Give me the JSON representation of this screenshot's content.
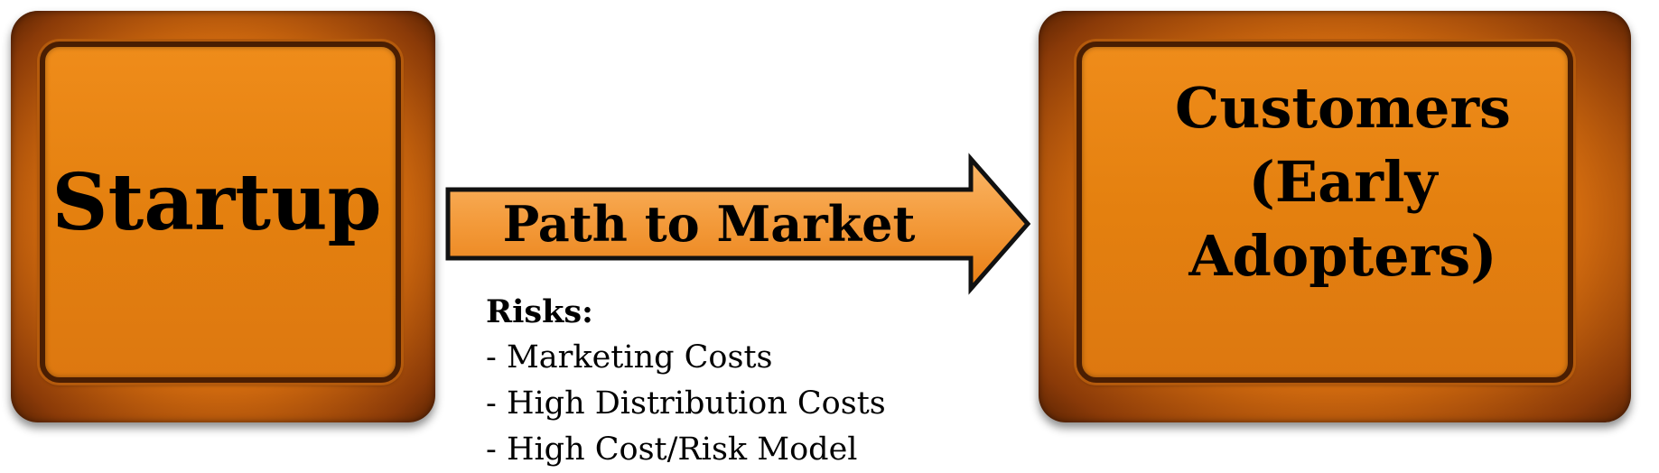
{
  "nodes": {
    "startup": {
      "label": "Startup"
    },
    "customers": {
      "line1": "Customers",
      "line2": "(Early Adopters)"
    }
  },
  "arrow": {
    "label": "Path to Market"
  },
  "risks": {
    "title": "Risks:",
    "items": [
      "- Marketing Costs",
      "- High Distribution Costs",
      "- High Cost/Risk Model"
    ]
  },
  "colors": {
    "box_fill": "#e4800f",
    "box_frame": "#4a1e02",
    "arrow_fill": "#f39a3a",
    "text": "#000000"
  }
}
